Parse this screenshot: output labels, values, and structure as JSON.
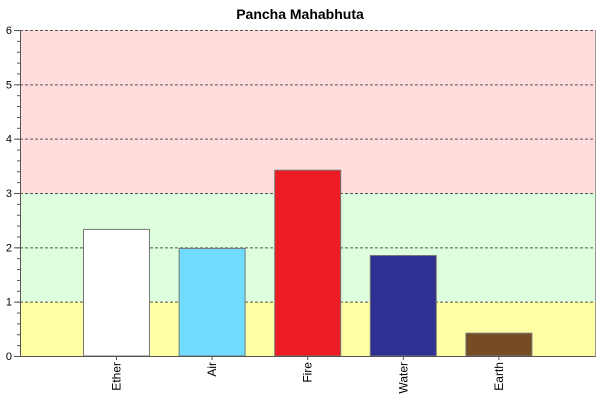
{
  "chart_data": {
    "type": "bar",
    "title": "Pancha Mahabhuta",
    "xlabel": "",
    "ylabel": "",
    "ylim": [
      0,
      6
    ],
    "yticks": [
      "0",
      "1",
      "2",
      "3",
      "4",
      "5",
      "6"
    ],
    "categories": [
      "Ether",
      "Air",
      "Fire",
      "Water",
      "Earth"
    ],
    "values": [
      2.33,
      1.98,
      3.42,
      1.85,
      0.42
    ],
    "bar_colors": [
      "#ffffff",
      "#6fdcff",
      "#ed1c24",
      "#2e3192",
      "#754c24"
    ],
    "bands": [
      {
        "from": 0,
        "to": 1,
        "color": "#ffffa6"
      },
      {
        "from": 1,
        "to": 3,
        "color": "#ddffdd"
      },
      {
        "from": 3,
        "to": 6,
        "color": "#ffdddd"
      }
    ],
    "grid": true,
    "legend": "none"
  }
}
